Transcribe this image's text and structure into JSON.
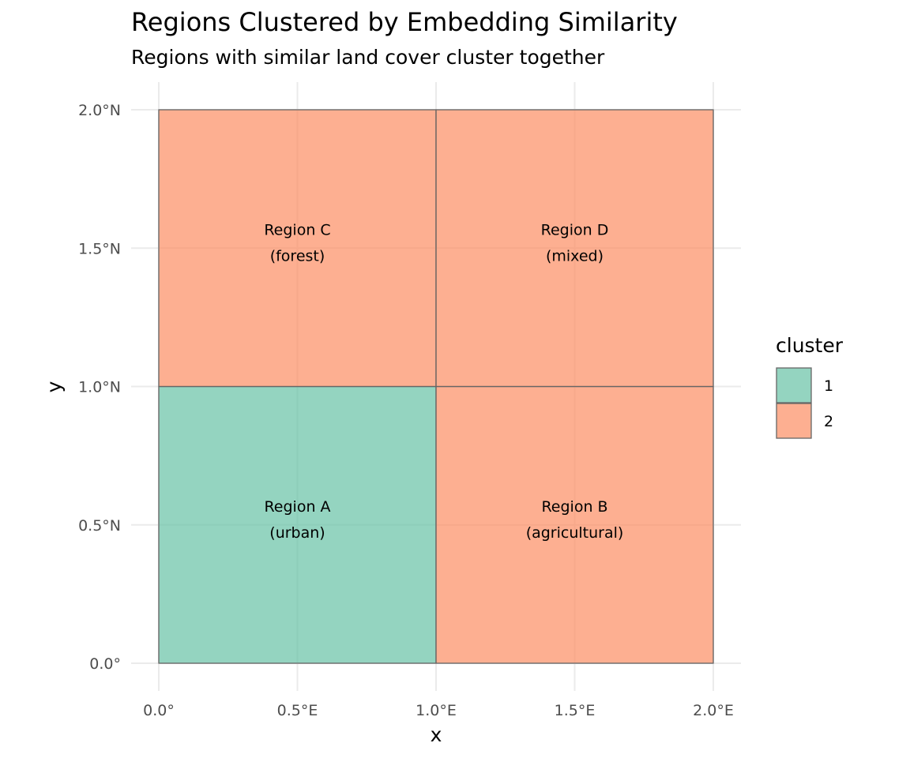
{
  "chart_data": {
    "type": "heatmap",
    "title": "Regions Clustered by Embedding Similarity",
    "subtitle": "Regions with similar land cover cluster together",
    "xlabel": "x",
    "ylabel": "y",
    "xlim": [
      0,
      2
    ],
    "ylim": [
      0,
      2
    ],
    "grid": true,
    "x_ticks": [
      {
        "value": 0.0,
        "label": "0.0°"
      },
      {
        "value": 0.5,
        "label": "0.5°E"
      },
      {
        "value": 1.0,
        "label": "1.0°E"
      },
      {
        "value": 1.5,
        "label": "1.5°E"
      },
      {
        "value": 2.0,
        "label": "2.0°E"
      }
    ],
    "y_ticks": [
      {
        "value": 0.0,
        "label": "0.0°"
      },
      {
        "value": 0.5,
        "label": "0.5°N"
      },
      {
        "value": 1.0,
        "label": "1.0°N"
      },
      {
        "value": 1.5,
        "label": "1.5°N"
      },
      {
        "value": 2.0,
        "label": "2.0°N"
      }
    ],
    "regions": [
      {
        "name": "Region A",
        "type": "urban",
        "label_line1": "Region A",
        "label_line2": "(urban)",
        "xmin": 0,
        "xmax": 1,
        "ymin": 0,
        "ymax": 1,
        "cluster": "1"
      },
      {
        "name": "Region B",
        "type": "agricultural",
        "label_line1": "Region B",
        "label_line2": "(agricultural)",
        "xmin": 1,
        "xmax": 2,
        "ymin": 0,
        "ymax": 1,
        "cluster": "2"
      },
      {
        "name": "Region C",
        "type": "forest",
        "label_line1": "Region C",
        "label_line2": "(forest)",
        "xmin": 0,
        "xmax": 1,
        "ymin": 1,
        "ymax": 2,
        "cluster": "2"
      },
      {
        "name": "Region D",
        "type": "mixed",
        "label_line1": "Region D",
        "label_line2": "(mixed)",
        "xmin": 1,
        "xmax": 2,
        "ymin": 1,
        "ymax": 2,
        "cluster": "2"
      }
    ],
    "legend": {
      "title": "cluster",
      "position": "right",
      "entries": [
        {
          "label": "1",
          "color": "#66c2a5"
        },
        {
          "label": "2",
          "color": "#fc8d62"
        }
      ]
    },
    "fill_opacity": 0.7,
    "border_color": "#666666",
    "grid_color": "#ebebeb"
  }
}
